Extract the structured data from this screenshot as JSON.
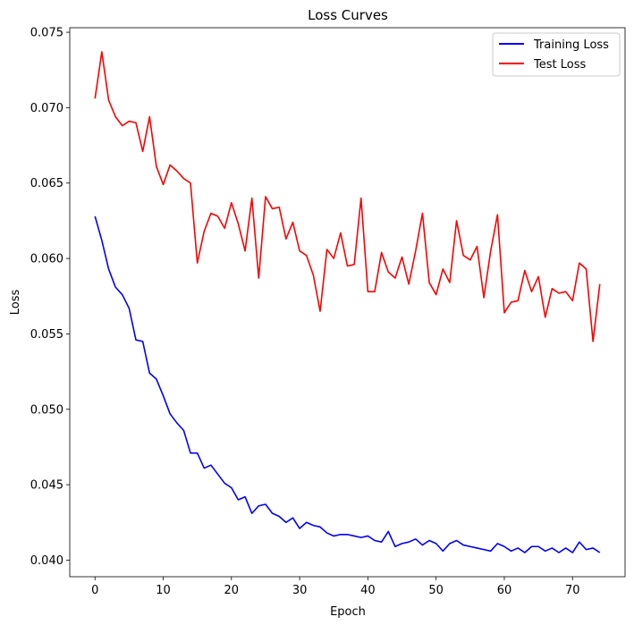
{
  "chart_data": {
    "type": "line",
    "title": "Loss Curves",
    "xlabel": "Epoch",
    "ylabel": "Loss",
    "xlim": [
      -3.7,
      77.7
    ],
    "ylim": [
      0.0389,
      0.0753
    ],
    "xticks": [
      0,
      10,
      20,
      30,
      40,
      50,
      60,
      70
    ],
    "yticks": [
      0.04,
      0.045,
      0.05,
      0.055,
      0.06,
      0.065,
      0.07,
      0.075
    ],
    "ytick_labels": [
      "0.040",
      "0.045",
      "0.050",
      "0.055",
      "0.060",
      "0.065",
      "0.070",
      "0.075"
    ],
    "grid": false,
    "legend_position": "upper right",
    "x": [
      0,
      1,
      2,
      3,
      4,
      5,
      6,
      7,
      8,
      9,
      10,
      11,
      12,
      13,
      14,
      15,
      16,
      17,
      18,
      19,
      20,
      21,
      22,
      23,
      24,
      25,
      26,
      27,
      28,
      29,
      30,
      31,
      32,
      33,
      34,
      35,
      36,
      37,
      38,
      39,
      40,
      41,
      42,
      43,
      44,
      45,
      46,
      47,
      48,
      49,
      50,
      51,
      52,
      53,
      54,
      55,
      56,
      57,
      58,
      59,
      60,
      61,
      62,
      63,
      64,
      65,
      66,
      67,
      68,
      69,
      70,
      71,
      72,
      73,
      74
    ],
    "series": [
      {
        "name": "Training Loss",
        "color": "#0000ff",
        "values": [
          0.0628,
          0.0612,
          0.0593,
          0.0581,
          0.0576,
          0.0567,
          0.0546,
          0.0545,
          0.0524,
          0.052,
          0.0509,
          0.0497,
          0.0491,
          0.0486,
          0.0471,
          0.0471,
          0.0461,
          0.0463,
          0.0457,
          0.0451,
          0.0448,
          0.044,
          0.0442,
          0.0431,
          0.0436,
          0.0437,
          0.0431,
          0.0429,
          0.0425,
          0.0428,
          0.0421,
          0.0425,
          0.0423,
          0.0422,
          0.0418,
          0.0416,
          0.0417,
          0.0417,
          0.0416,
          0.0415,
          0.0416,
          0.0413,
          0.0412,
          0.0419,
          0.0409,
          0.0411,
          0.0412,
          0.0414,
          0.041,
          0.0413,
          0.0411,
          0.0406,
          0.0411,
          0.0413,
          0.041,
          0.0409,
          0.0408,
          0.0407,
          0.0406,
          0.0411,
          0.0409,
          0.0406,
          0.0408,
          0.0405,
          0.0409,
          0.0409,
          0.0406,
          0.0408,
          0.0405,
          0.0408,
          0.0405,
          0.0412,
          0.0407,
          0.0408,
          0.0405
        ]
      },
      {
        "name": "Test Loss",
        "color": "#ff0000",
        "values": [
          0.0706,
          0.0737,
          0.0705,
          0.0694,
          0.0688,
          0.0691,
          0.069,
          0.0671,
          0.0694,
          0.0661,
          0.0649,
          0.0662,
          0.0658,
          0.0653,
          0.065,
          0.0597,
          0.0618,
          0.063,
          0.0628,
          0.062,
          0.0637,
          0.0623,
          0.0605,
          0.064,
          0.0587,
          0.0641,
          0.0633,
          0.0634,
          0.0613,
          0.0624,
          0.0605,
          0.0602,
          0.0589,
          0.0565,
          0.0606,
          0.06,
          0.0617,
          0.0595,
          0.0596,
          0.064,
          0.0578,
          0.0578,
          0.0604,
          0.0591,
          0.0587,
          0.0601,
          0.0583,
          0.0605,
          0.063,
          0.0584,
          0.0576,
          0.0593,
          0.0584,
          0.0625,
          0.0602,
          0.0599,
          0.0608,
          0.0574,
          0.0605,
          0.0629,
          0.0564,
          0.0571,
          0.0572,
          0.0592,
          0.0578,
          0.0588,
          0.0561,
          0.058,
          0.0577,
          0.0578,
          0.0572,
          0.0597,
          0.0593,
          0.0545,
          0.0583
        ]
      }
    ]
  }
}
